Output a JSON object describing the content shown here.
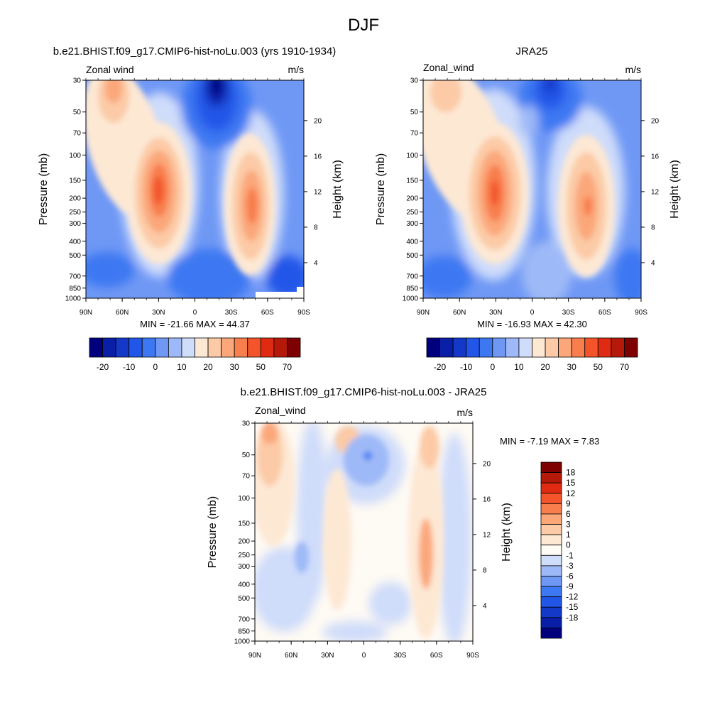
{
  "figure": {
    "title": "DJF"
  },
  "colorbars": {
    "full": {
      "colors": [
        "#00007f",
        "#0a1fa8",
        "#1439c8",
        "#2156e8",
        "#3d78f2",
        "#6f98f5",
        "#9eb9f7",
        "#cfdcfa",
        "#fde8d4",
        "#fccaa6",
        "#fba77a",
        "#f87e4e",
        "#f3542a",
        "#e02b12",
        "#b4190a",
        "#7f0000"
      ],
      "labels": [
        "-20",
        "-10",
        "0",
        "10",
        "20",
        "30",
        "50",
        "70"
      ]
    },
    "diff": {
      "colors": [
        "#00007f",
        "#0a1fa8",
        "#1439c8",
        "#2156e8",
        "#3d78f2",
        "#6f98f5",
        "#9eb9f7",
        "#cfdcfa",
        "#fefaf4",
        "#fde8d4",
        "#fccaa6",
        "#fba77a",
        "#f87e4e",
        "#f3542a",
        "#e02b12",
        "#b4190a",
        "#7f0000"
      ],
      "labels": [
        "18",
        "15",
        "12",
        "9",
        "6",
        "3",
        "1",
        "0",
        "-1",
        "-3",
        "-6",
        "-9",
        "-12",
        "-15",
        "-18"
      ]
    }
  },
  "axes": {
    "pressure_ticks": [
      "30",
      "50",
      "70",
      "100",
      "150",
      "200",
      "250",
      "300",
      "400",
      "500",
      "700",
      "850",
      "1000"
    ],
    "height_ticks": [
      "20",
      "16",
      "12",
      "8",
      "4"
    ],
    "lat_ticks": [
      "90N",
      "60N",
      "30N",
      "0",
      "30S",
      "60S",
      "90S"
    ],
    "ylabel": "Pressure (mb)",
    "y2label": "Height (km)"
  },
  "chart_data": [
    {
      "type": "heatmap",
      "title": "b.e21.BHIST.f09_g17.CMIP6-hist-noLu.003 (yrs 1910-1934)",
      "left_string": "Zonal wind",
      "right_string": "m/s",
      "stats": "MIN = -21.66  MAX =  44.37",
      "x": [
        "90N",
        "60N",
        "30N",
        "0",
        "30S",
        "60S",
        "90S"
      ],
      "y": [
        "30",
        "50",
        "70",
        "100",
        "150",
        "200",
        "250",
        "300",
        "400",
        "500",
        "700",
        "850",
        "1000"
      ],
      "colorbar_levels": [
        -20,
        -10,
        0,
        10,
        20,
        30,
        50,
        70
      ],
      "min": -21.66,
      "max": 44.37
    },
    {
      "type": "heatmap",
      "title": "JRA25",
      "left_string": "Zonal_wind",
      "right_string": "m/s",
      "stats": "MIN = -16.93  MAX =  42.30",
      "x": [
        "90N",
        "60N",
        "30N",
        "0",
        "30S",
        "60S",
        "90S"
      ],
      "y": [
        "30",
        "50",
        "70",
        "100",
        "150",
        "200",
        "250",
        "300",
        "400",
        "500",
        "700",
        "850",
        "1000"
      ],
      "colorbar_levels": [
        -20,
        -10,
        0,
        10,
        20,
        30,
        50,
        70
      ],
      "min": -16.93,
      "max": 42.3
    },
    {
      "type": "heatmap",
      "title": "b.e21.BHIST.f09_g17.CMIP6-hist-noLu.003 - JRA25",
      "left_string": "Zonal_wind",
      "right_string": "m/s",
      "stats": "MIN =  -7.19  MAX =   7.83",
      "x": [
        "90N",
        "60N",
        "30N",
        "0",
        "30S",
        "60S",
        "90S"
      ],
      "y": [
        "30",
        "50",
        "70",
        "100",
        "150",
        "200",
        "250",
        "300",
        "400",
        "500",
        "700",
        "850",
        "1000"
      ],
      "colorbar_levels": [
        -18,
        -15,
        -12,
        -9,
        -6,
        -3,
        -1,
        0,
        1,
        3,
        6,
        9,
        12,
        15,
        18
      ],
      "min": -7.19,
      "max": 7.83
    }
  ]
}
